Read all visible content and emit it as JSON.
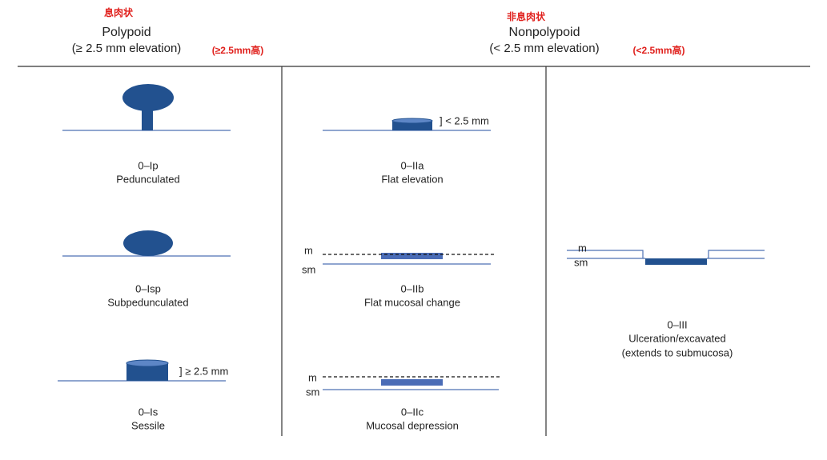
{
  "header": {
    "polypoid": {
      "chinese": "息肉状",
      "title": "Polypoid",
      "subtitle": "(≥ 2.5 mm elevation)",
      "note": "(≥2.5mm高)"
    },
    "nonpolypoid": {
      "chinese": "非息肉状",
      "title": "Nonpolypoid",
      "subtitle": "(< 2.5 mm elevation)",
      "note": "(<2.5mm高)"
    }
  },
  "lesions": [
    {
      "code": "0–Ip",
      "name": "Pedunculated"
    },
    {
      "code": "0–Isp",
      "name": "Subpedunculated"
    },
    {
      "code": "0–Is",
      "name": "Sessile",
      "height_label": "] ≥ 2.5 mm"
    },
    {
      "code": "0–IIa",
      "name": "Flat elevation",
      "height_label": "] < 2.5 mm"
    },
    {
      "code": "0–IIb",
      "name": "Flat mucosal change",
      "layers": [
        "m",
        "sm"
      ]
    },
    {
      "code": "0–IIc",
      "name": "Mucosal depression",
      "layers": [
        "m",
        "sm"
      ]
    },
    {
      "code": "0–III",
      "name": "Ulceration/excavated",
      "note": "(extends to submucosa)",
      "layers": [
        "m",
        "sm"
      ]
    }
  ]
}
